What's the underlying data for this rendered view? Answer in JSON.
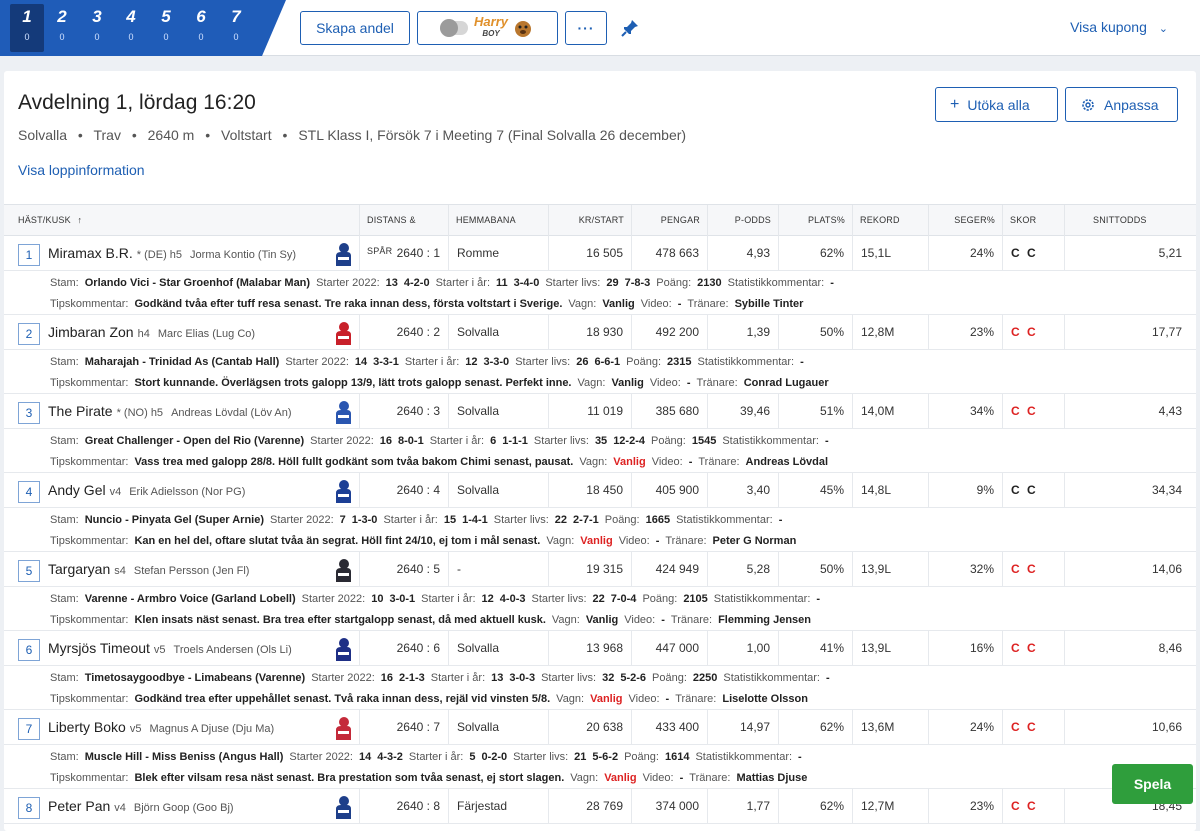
{
  "legs": [
    {
      "num": "1",
      "count": "0"
    },
    {
      "num": "2",
      "count": "0"
    },
    {
      "num": "3",
      "count": "0"
    },
    {
      "num": "4",
      "count": "0"
    },
    {
      "num": "5",
      "count": "0"
    },
    {
      "num": "6",
      "count": "0"
    },
    {
      "num": "7",
      "count": "0"
    }
  ],
  "toolbar": {
    "skapa_andel": "Skapa andel",
    "harry_top": "Harry",
    "harry_bottom": "BOY",
    "more": "···",
    "visa_kupong": "Visa kupong"
  },
  "race": {
    "title": "Avdelning 1,  lördag 16:20",
    "track": "Solvalla",
    "type": "Trav",
    "distance": "2640 m",
    "start": "Voltstart",
    "description": "STL Klass I, Försök 7 i Meeting 7 (Final Solvalla 26 december)",
    "info_link": "Visa loppinformation",
    "expand_all": "Utöka alla",
    "customize": "Anpassa"
  },
  "columns": [
    "HÄST/KUSK",
    "DISTANS & SPÅR",
    "HEMMABANA",
    "KR/START",
    "PENGAR",
    "P-ODDS",
    "PLATS%",
    "REKORD",
    "SEGER%",
    "SKOR",
    "SNITTODDS"
  ],
  "detail_labels": {
    "stam": "Stam:",
    "starter_2022": "Starter 2022:",
    "starter_ar": "Starter i år:",
    "starter_livs": "Starter livs:",
    "poang": "Poäng:",
    "statkom": "Statistikkommentar:",
    "tips": "Tipskommentar:",
    "vagn": "Vagn:",
    "video": "Video:",
    "tranare": "Tränare:"
  },
  "horses": [
    {
      "no": "1",
      "name": "Miramax B.R.",
      "meta": "* (DE) h5",
      "driver": "Jorma Kontio  (Tin Sy)",
      "dist": "2640 : 1",
      "home": "Romme",
      "kr": "16 505",
      "money": "478 663",
      "podds": "4,93",
      "plats": "62%",
      "rekord": "15,1L",
      "seger": "24%",
      "shoes": "C C",
      "snitt": "5,21",
      "stam": "Orlando Vici - Star Groenhof (Malabar Man)",
      "s2022": "13",
      "s2022r": "4-2-0",
      "sar": "11",
      "sarr": "3-4-0",
      "slivs": "29",
      "slivsr": "7-8-3",
      "poang": "2130",
      "statkom": "-",
      "tips": "Godkänd tvåa efter tuff resa senast. Tre raka innan dess, första voltstart i Sverige.",
      "vagn": "Vanlig",
      "video": "-",
      "tranare": "Sybille Tinter",
      "silk": "#1e3f8a"
    },
    {
      "no": "2",
      "name": "Jimbaran Zon",
      "meta": "h4",
      "driver": "Marc Elias  (Lug Co)",
      "dist": "2640 : 2",
      "home": "Solvalla",
      "kr": "18 930",
      "money": "492 200",
      "podds": "1,39",
      "plats": "50%",
      "rekord": "12,8M",
      "seger": "23%",
      "shoes": "C C",
      "snitt": "17,77",
      "stam": "Maharajah - Trinidad As (Cantab Hall)",
      "s2022": "14",
      "s2022r": "3-3-1",
      "sar": "12",
      "sarr": "3-3-0",
      "slivs": "26",
      "slivsr": "6-6-1",
      "poang": "2315",
      "statkom": "-",
      "tips": "Stort kunnande. Överlägsen trots galopp 13/9, lätt trots galopp senast. Perfekt inne.",
      "vagn": "Vanlig",
      "video": "-",
      "tranare": "Conrad Lugauer",
      "silk": "#c8202a"
    },
    {
      "no": "3",
      "name": "The Pirate",
      "meta": "* (NO) h5",
      "driver": "Andreas Lövdal  (Löv An)",
      "dist": "2640 : 3",
      "home": "Solvalla",
      "kr": "11 019",
      "money": "385 680",
      "podds": "39,46",
      "plats": "51%",
      "rekord": "14,0M",
      "seger": "34%",
      "shoes": "C C",
      "snitt": "4,43",
      "stam": "Great Challenger - Open del Rio (Varenne)",
      "s2022": "16",
      "s2022r": "8-0-1",
      "sar": "6",
      "sarr": "1-1-1",
      "slivs": "35",
      "slivsr": "12-2-4",
      "poang": "1545",
      "statkom": "-",
      "tips": "Vass trea med galopp 28/8. Höll fullt godkänt som tvåa bakom Chimi senast, pausat.",
      "vagn": "Vanlig",
      "video": "-",
      "tranare": "Andreas Lövdal",
      "silk": "#2a56b0"
    },
    {
      "no": "4",
      "name": "Andy Gel",
      "meta": "v4",
      "driver": "Erik Adielsson  (Nor PG)",
      "dist": "2640 : 4",
      "home": "Solvalla",
      "kr": "18 450",
      "money": "405 900",
      "podds": "3,40",
      "plats": "45%",
      "rekord": "14,8L",
      "seger": "9%",
      "shoes": "C C",
      "snitt": "34,34",
      "stam": "Nuncio - Pinyata Gel (Super Arnie)",
      "s2022": "7",
      "s2022r": "1-3-0",
      "sar": "15",
      "sarr": "1-4-1",
      "slivs": "22",
      "slivsr": "2-7-1",
      "poang": "1665",
      "statkom": "-",
      "tips": "Kan en hel del, oftare slutat tvåa än segrat. Höll fint 24/10, ej tom i mål senast.",
      "vagn": "Vanlig",
      "video": "-",
      "tranare": "Peter G Norman",
      "silk": "#1c3f95"
    },
    {
      "no": "5",
      "name": "Targaryan",
      "meta": "s4",
      "driver": "Stefan Persson  (Jen Fl)",
      "dist": "2640 : 5",
      "home": "-",
      "kr": "19 315",
      "money": "424 949",
      "podds": "5,28",
      "plats": "50%",
      "rekord": "13,9L",
      "seger": "32%",
      "shoes": "C C",
      "snitt": "14,06",
      "stam": "Varenne - Armbro Voice (Garland Lobell)",
      "s2022": "10",
      "s2022r": "3-0-1",
      "sar": "12",
      "sarr": "4-0-3",
      "slivs": "22",
      "slivsr": "7-0-4",
      "poang": "2105",
      "statkom": "-",
      "tips": "Klen insats näst senast. Bra trea efter startgalopp senast, då med aktuell kusk.",
      "vagn": "Vanlig",
      "video": "-",
      "tranare": "Flemming Jensen",
      "silk": "#2a2a33"
    },
    {
      "no": "6",
      "name": "Myrsjös Timeout",
      "meta": "v5",
      "driver": "Troels Andersen  (Ols Li)",
      "dist": "2640 : 6",
      "home": "Solvalla",
      "kr": "13 968",
      "money": "447 000",
      "podds": "1,00",
      "plats": "41%",
      "rekord": "13,9L",
      "seger": "16%",
      "shoes": "C C",
      "snitt": "8,46",
      "stam": "Timetosaygoodbye - Limabeans (Varenne)",
      "s2022": "16",
      "s2022r": "2-1-3",
      "sar": "13",
      "sarr": "3-0-3",
      "slivs": "32",
      "slivsr": "5-2-6",
      "poang": "2250",
      "statkom": "-",
      "tips": "Godkänd trea efter uppehållet senast. Två raka innan dess, rejäl vid vinsten 5/8.",
      "vagn": "Vanlig",
      "video": "-",
      "tranare": "Liselotte Olsson",
      "silk": "#1e2f86"
    },
    {
      "no": "7",
      "name": "Liberty Boko",
      "meta": "v5",
      "driver": "Magnus A Djuse  (Dju Ma)",
      "dist": "2640 : 7",
      "home": "Solvalla",
      "kr": "20 638",
      "money": "433 400",
      "podds": "14,97",
      "plats": "62%",
      "rekord": "13,6M",
      "seger": "24%",
      "shoes": "C C",
      "snitt": "10,66",
      "stam": "Muscle Hill - Miss Beniss (Angus Hall)",
      "s2022": "14",
      "s2022r": "4-3-2",
      "sar": "5",
      "sarr": "0-2-0",
      "slivs": "21",
      "slivsr": "5-6-2",
      "poang": "1614",
      "statkom": "-",
      "tips": "Blek efter vilsam resa näst senast. Bra prestation som tvåa senast, ej stort slagen.",
      "vagn": "Vanlig",
      "video": "-",
      "tranare": "Mattias Djuse",
      "silk": "#c42a3a"
    },
    {
      "no": "8",
      "name": "Peter Pan",
      "meta": "v4",
      "driver": "Björn Goop  (Goo Bj)",
      "dist": "2640 : 8",
      "home": "Färjestad",
      "kr": "28 769",
      "money": "374 000",
      "podds": "1,77",
      "plats": "62%",
      "rekord": "12,7M",
      "seger": "23%",
      "shoes": "C C",
      "snitt": "18,45",
      "silk": "#1e3f8a"
    }
  ],
  "spela": "Spela"
}
